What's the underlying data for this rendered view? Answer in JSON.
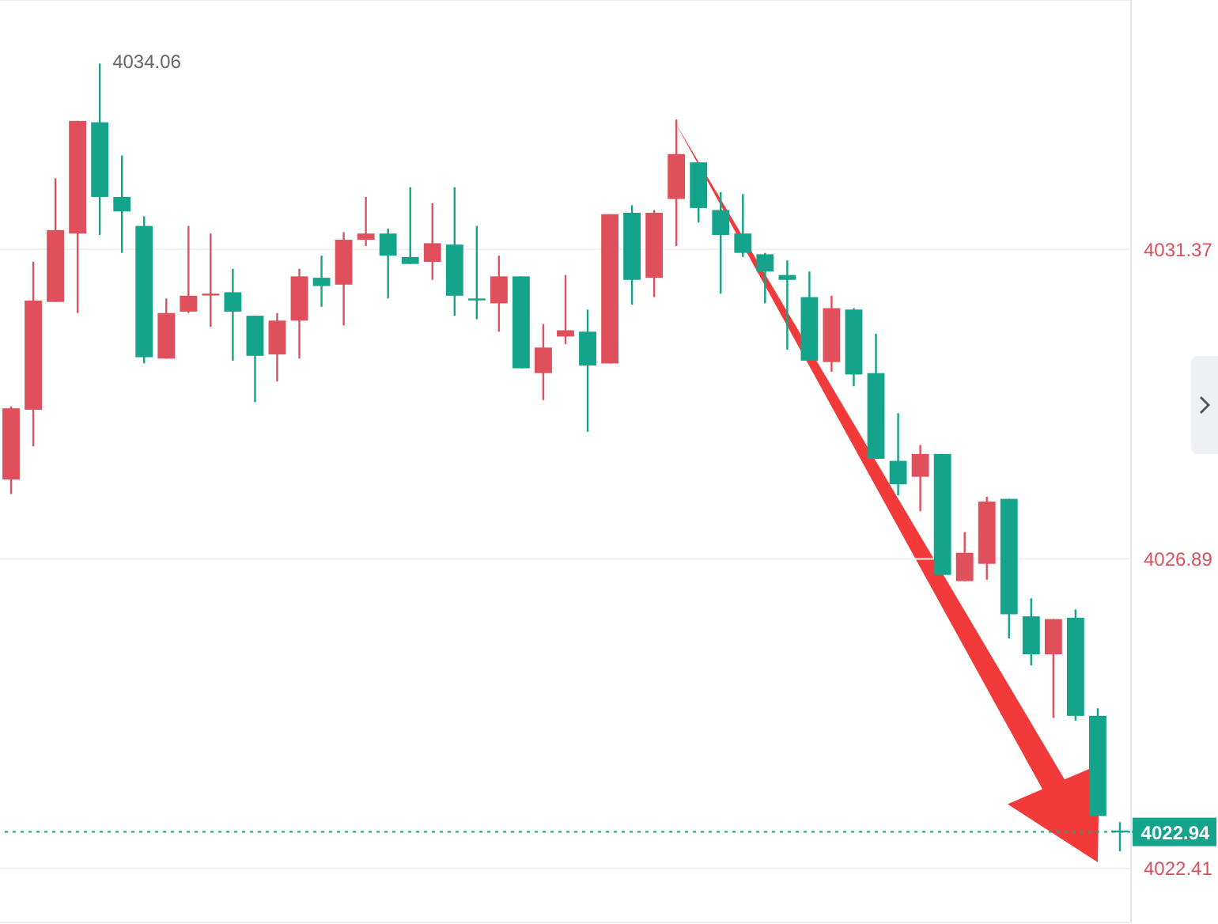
{
  "chart_data": {
    "type": "candlestick",
    "categories": [
      null,
      null,
      null,
      null,
      null,
      null,
      null,
      null,
      null,
      null,
      null,
      null,
      null,
      null,
      null,
      null,
      null,
      null,
      null,
      null,
      null,
      null,
      null,
      null,
      null,
      null,
      null,
      null,
      null,
      null,
      null,
      null,
      null,
      null,
      null,
      null,
      null,
      null,
      null,
      null,
      null,
      null,
      null,
      null,
      null,
      null,
      null,
      null,
      null,
      null,
      null
    ],
    "ohlc": [
      [
        4028.04,
        4029.1,
        4027.83,
        4029.07
      ],
      [
        4029.05,
        4031.19,
        4028.52,
        4030.63
      ],
      [
        4030.61,
        4032.4,
        4030.61,
        4031.65
      ],
      [
        4031.6,
        4033.23,
        4030.45,
        4033.23
      ],
      [
        4033.21,
        4034.06,
        4031.58,
        4032.13
      ],
      [
        4032.13,
        4032.73,
        4031.32,
        4031.92
      ],
      [
        4031.71,
        4031.85,
        4029.72,
        4029.81
      ],
      [
        4029.79,
        4030.66,
        4029.79,
        4030.45
      ],
      [
        4030.47,
        4031.71,
        4030.45,
        4030.7
      ],
      [
        4030.73,
        4031.6,
        4030.25,
        4030.73
      ],
      [
        4030.75,
        4031.09,
        4029.76,
        4030.47
      ],
      [
        4030.41,
        4030.41,
        4029.16,
        4029.83
      ],
      [
        4029.85,
        4030.45,
        4029.46,
        4030.34
      ],
      [
        4030.34,
        4031.09,
        4029.79,
        4030.98
      ],
      [
        4030.96,
        4031.28,
        4030.54,
        4030.84
      ],
      [
        4030.86,
        4031.62,
        4030.27,
        4031.51
      ],
      [
        4031.51,
        4032.13,
        4031.42,
        4031.6
      ],
      [
        4031.6,
        4031.67,
        4030.66,
        4031.28
      ],
      [
        4031.26,
        4032.27,
        4031.16,
        4031.16
      ],
      [
        4031.19,
        4032.04,
        4030.93,
        4031.46
      ],
      [
        4031.44,
        4032.27,
        4030.41,
        4030.7
      ],
      [
        4030.66,
        4031.71,
        4030.36,
        4030.66
      ],
      [
        4030.59,
        4031.28,
        4030.18,
        4030.98
      ],
      [
        4030.98,
        4030.98,
        4029.65,
        4029.65
      ],
      [
        4029.58,
        4030.29,
        4029.19,
        4029.95
      ],
      [
        4030.11,
        4031.0,
        4030.0,
        4030.2
      ],
      [
        4030.18,
        4030.5,
        4028.73,
        4029.69
      ],
      [
        4029.72,
        4031.88,
        4029.72,
        4031.88
      ],
      [
        4031.9,
        4032.01,
        4030.57,
        4030.93
      ],
      [
        4030.96,
        4031.94,
        4030.68,
        4031.9
      ],
      [
        4032.1,
        4033.25,
        4031.42,
        4032.75
      ],
      [
        4032.63,
        4032.63,
        4031.76,
        4031.97
      ],
      [
        4031.94,
        4032.2,
        4030.73,
        4031.58
      ],
      [
        4031.6,
        4032.17,
        4031.26,
        4031.32
      ],
      [
        4031.3,
        4031.32,
        4030.59,
        4031.05
      ],
      [
        4031.0,
        4031.21,
        4029.92,
        4030.93
      ],
      [
        4030.68,
        4031.05,
        4029.76,
        4029.76
      ],
      [
        4029.74,
        4030.7,
        4029.6,
        4030.52
      ],
      [
        4030.5,
        4030.52,
        4029.39,
        4029.56
      ],
      [
        4029.58,
        4030.15,
        4028.34,
        4028.34
      ],
      [
        4028.31,
        4029.0,
        4027.81,
        4027.97
      ],
      [
        4028.08,
        4028.54,
        4027.58,
        4028.41
      ],
      [
        4028.41,
        4028.41,
        4026.66,
        4026.66
      ],
      [
        4026.57,
        4027.28,
        4026.57,
        4026.98
      ],
      [
        4026.82,
        4027.79,
        4026.59,
        4027.72
      ],
      [
        4027.76,
        4027.76,
        4025.74,
        4026.09
      ],
      [
        4026.06,
        4026.32,
        4025.35,
        4025.51
      ],
      [
        4025.51,
        4026.02,
        4024.59,
        4026.02
      ],
      [
        4026.04,
        4026.16,
        4024.55,
        4024.62
      ],
      [
        4024.62,
        4024.73,
        4023.17,
        4023.17
      ],
      [
        4022.96,
        4023.08,
        4022.66,
        4022.94
      ]
    ],
    "colors": [
      "#e0505c",
      "#e0505c",
      "#e0505c",
      "#e0505c",
      "#14a38b",
      "#14a38b",
      "#14a38b",
      "#e0505c",
      "#e0505c",
      "#e0505c",
      "#14a38b",
      "#14a38b",
      "#e0505c",
      "#e0505c",
      "#14a38b",
      "#e0505c",
      "#e0505c",
      "#14a38b",
      "#14a38b",
      "#e0505c",
      "#14a38b",
      "#14a38b",
      "#e0505c",
      "#14a38b",
      "#e0505c",
      "#e0505c",
      "#14a38b",
      "#e0505c",
      "#14a38b",
      "#e0505c",
      "#e0505c",
      "#14a38b",
      "#14a38b",
      "#14a38b",
      "#14a38b",
      "#14a38b",
      "#14a38b",
      "#e0505c",
      "#14a38b",
      "#14a38b",
      "#14a38b",
      "#e0505c",
      "#14a38b",
      "#e0505c",
      "#e0505c",
      "#14a38b",
      "#14a38b",
      "#e0505c",
      "#14a38b",
      "#14a38b",
      "#14a38b"
    ],
    "ylim": [
      4021.63,
      4034.98
    ],
    "yticks": [
      4031.37,
      4026.89,
      4022.41
    ],
    "grid": "y",
    "ref_lines": [
      {
        "axis": "y",
        "value": 4022.94,
        "label": "4022.94",
        "color": "#14a38b",
        "line_style": "dotted"
      }
    ],
    "annotations": [
      "4034.06"
    ]
  }
}
